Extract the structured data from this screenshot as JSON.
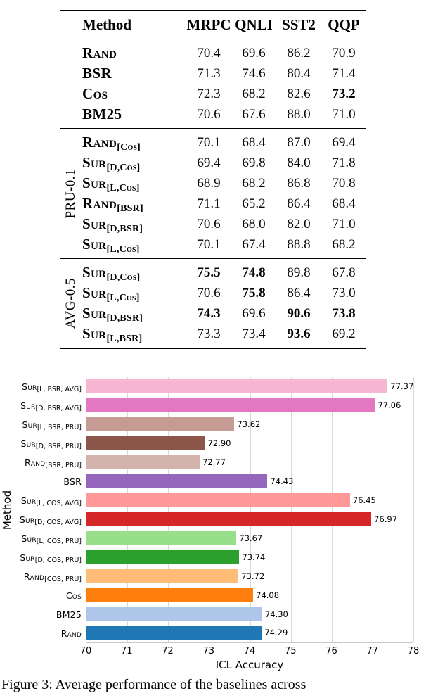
{
  "table": {
    "headers": [
      "Method",
      "MRPC",
      "QNLI",
      "SST2",
      "QQP"
    ],
    "groups": [
      {
        "label": "",
        "rows": [
          {
            "name": "Rand",
            "sub": "",
            "values": [
              "70.4",
              "69.6",
              "86.2",
              "70.9"
            ],
            "bold": [
              0,
              0,
              0,
              0
            ]
          },
          {
            "name": "BSR",
            "sub": "",
            "values": [
              "71.3",
              "74.6",
              "80.4",
              "71.4"
            ],
            "bold": [
              0,
              0,
              0,
              0
            ]
          },
          {
            "name": "Cos",
            "sub": "",
            "values": [
              "72.3",
              "68.2",
              "82.6",
              "73.2"
            ],
            "bold": [
              0,
              0,
              0,
              1
            ]
          },
          {
            "name": "BM25",
            "sub": "",
            "values": [
              "70.6",
              "67.6",
              "88.0",
              "71.0"
            ],
            "bold": [
              0,
              0,
              0,
              0
            ]
          }
        ]
      },
      {
        "label": "PRU-0.1",
        "rows": [
          {
            "name": "Rand",
            "sub": "[Cos]",
            "values": [
              "70.1",
              "68.4",
              "87.0",
              "69.4"
            ],
            "bold": [
              0,
              0,
              0,
              0
            ]
          },
          {
            "name": "Sur",
            "sub": "[D,Cos]",
            "values": [
              "69.4",
              "69.8",
              "84.0",
              "71.8"
            ],
            "bold": [
              0,
              0,
              0,
              0
            ]
          },
          {
            "name": "Sur",
            "sub": "[L,Cos]",
            "values": [
              "68.9",
              "68.2",
              "86.8",
              "70.8"
            ],
            "bold": [
              0,
              0,
              0,
              0
            ]
          },
          {
            "name": "Rand",
            "sub": "[BSR]",
            "values": [
              "71.1",
              "65.2",
              "86.4",
              "68.4"
            ],
            "bold": [
              0,
              0,
              0,
              0
            ]
          },
          {
            "name": "Sur",
            "sub": "[D,BSR]",
            "values": [
              "70.6",
              "68.0",
              "82.0",
              "71.0"
            ],
            "bold": [
              0,
              0,
              0,
              0
            ]
          },
          {
            "name": "Sur",
            "sub": "[L,Cos]",
            "values": [
              "70.1",
              "67.4",
              "88.8",
              "68.2"
            ],
            "bold": [
              0,
              0,
              0,
              0
            ]
          }
        ]
      },
      {
        "label": "AVG-0.5",
        "rows": [
          {
            "name": "Sur",
            "sub": "[D,Cos]",
            "values": [
              "75.5",
              "74.8",
              "89.8",
              "67.8"
            ],
            "bold": [
              1,
              1,
              0,
              0
            ]
          },
          {
            "name": "Sur",
            "sub": "[L,Cos]",
            "values": [
              "70.6",
              "75.8",
              "86.4",
              "73.0"
            ],
            "bold": [
              0,
              1,
              0,
              0
            ]
          },
          {
            "name": "Sur",
            "sub": "[D,BSR]",
            "values": [
              "74.3",
              "69.6",
              "90.6",
              "73.8"
            ],
            "bold": [
              1,
              0,
              1,
              1
            ]
          },
          {
            "name": "Sur",
            "sub": "[L,BSR]",
            "values": [
              "73.3",
              "73.4",
              "93.6",
              "69.2"
            ],
            "bold": [
              0,
              0,
              1,
              0
            ]
          }
        ]
      }
    ]
  },
  "chart_data": {
    "type": "bar",
    "orientation": "horizontal",
    "xlabel": "ICL Accuracy",
    "ylabel": "Method",
    "xlim": [
      70,
      78
    ],
    "grid": true,
    "xticks": [
      "70",
      "71",
      "72",
      "73",
      "74",
      "75",
      "76",
      "77",
      "78"
    ],
    "bars": [
      {
        "main": "Sur",
        "sub": "[L, BSR, AVG]",
        "value": 77.37,
        "label": "77.37",
        "color": "#f7b6d2"
      },
      {
        "main": "Sur",
        "sub": "[D, BSR, AVG]",
        "value": 77.06,
        "label": "77.06",
        "color": "#e377c2"
      },
      {
        "main": "Sur",
        "sub": "[L, BSR, PRU]",
        "value": 73.62,
        "label": "73.62",
        "color": "#c49c94"
      },
      {
        "main": "Sur",
        "sub": "[D, BSR, PRU]",
        "value": 72.9,
        "label": "72.90",
        "color": "#8c564b"
      },
      {
        "main": "Rand",
        "sub": "[BSR, PRU]",
        "value": 72.77,
        "label": "72.77",
        "color": "#d2b4ad"
      },
      {
        "main": "BSR",
        "sub": "",
        "value": 74.43,
        "label": "74.43",
        "color": "#9467bd"
      },
      {
        "main": "Sur",
        "sub": "[L, COS, AVG]",
        "value": 76.45,
        "label": "76.45",
        "color": "#ff9896"
      },
      {
        "main": "Sur",
        "sub": "[D, COS, AVG]",
        "value": 76.97,
        "label": "76.97",
        "color": "#d62728"
      },
      {
        "main": "Sur",
        "sub": "[L, COS, PRU]",
        "value": 73.67,
        "label": "73.67",
        "color": "#98df8a"
      },
      {
        "main": "Sur",
        "sub": "[D, COS, PRU]",
        "value": 73.74,
        "label": "73.74",
        "color": "#2ca02c"
      },
      {
        "main": "Rand",
        "sub": "[COS, PRU]",
        "value": 73.72,
        "label": "73.72",
        "color": "#ffbb78"
      },
      {
        "main": "Cos",
        "sub": "",
        "value": 74.08,
        "label": "74.08",
        "color": "#ff7f0e"
      },
      {
        "main": "BM25",
        "sub": "",
        "value": 74.3,
        "label": "74.30",
        "color": "#aec7e8"
      },
      {
        "main": "Rand",
        "sub": "",
        "value": 74.29,
        "label": "74.29",
        "color": "#1f77b4"
      }
    ]
  },
  "caption": "Figure 3: Average performance of the baselines across"
}
